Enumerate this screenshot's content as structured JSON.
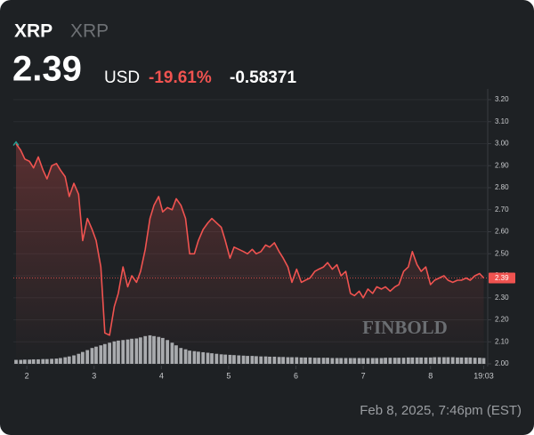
{
  "header": {
    "symbol": "XRP",
    "name": "XRP",
    "price": "2.39",
    "currency": "USD",
    "change_pct": "-19.61%",
    "change": "-0.58371"
  },
  "chart_data": {
    "type": "line",
    "x": [
      1.84,
      1.91,
      1.97,
      2.04,
      2.1,
      2.17,
      2.24,
      2.3,
      2.37,
      2.44,
      2.5,
      2.57,
      2.63,
      2.7,
      2.77,
      2.83,
      2.9,
      2.97,
      3.03,
      3.1,
      3.16,
      3.23,
      3.3,
      3.36,
      3.43,
      3.5,
      3.56,
      3.63,
      3.69,
      3.76,
      3.83,
      3.89,
      3.96,
      4.02,
      4.09,
      4.16,
      4.22,
      4.29,
      4.36,
      4.42,
      4.49,
      4.55,
      4.62,
      4.69,
      4.75,
      4.82,
      4.89,
      4.95,
      5.02,
      5.08,
      5.15,
      5.22,
      5.28,
      5.35,
      5.41,
      5.48,
      5.55,
      5.61,
      5.68,
      5.75,
      5.81,
      5.88,
      5.94,
      6.01,
      6.08,
      6.14,
      6.21,
      6.28,
      6.34,
      6.41,
      6.47,
      6.54,
      6.61,
      6.67,
      6.74,
      6.81,
      6.87,
      6.94,
      7.0,
      7.07,
      7.14,
      7.2,
      7.27,
      7.33,
      7.4,
      7.47,
      7.53,
      7.6,
      7.67,
      7.73,
      7.8,
      7.86,
      7.93,
      8.0,
      8.06,
      8.13,
      8.2,
      8.26,
      8.33,
      8.4,
      8.46,
      8.53,
      8.59,
      8.66,
      8.73,
      8.79
    ],
    "series": [
      {
        "color": "#f05350",
        "values": [
          3.0,
          2.97,
          2.93,
          2.92,
          2.89,
          2.94,
          2.88,
          2.84,
          2.9,
          2.91,
          2.88,
          2.85,
          2.76,
          2.82,
          2.77,
          2.56,
          2.66,
          2.61,
          2.56,
          2.44,
          2.14,
          2.13,
          2.26,
          2.32,
          2.44,
          2.35,
          2.4,
          2.37,
          2.42,
          2.52,
          2.66,
          2.72,
          2.76,
          2.69,
          2.71,
          2.7,
          2.75,
          2.72,
          2.66,
          2.5,
          2.5,
          2.56,
          2.61,
          2.64,
          2.66,
          2.64,
          2.62,
          2.56,
          2.48,
          2.53,
          2.52,
          2.51,
          2.5,
          2.52,
          2.5,
          2.51,
          2.54,
          2.53,
          2.55,
          2.51,
          2.48,
          2.44,
          2.37,
          2.43,
          2.37,
          2.38,
          2.39,
          2.42,
          2.43,
          2.44,
          2.46,
          2.43,
          2.45,
          2.4,
          2.42,
          2.32,
          2.31,
          2.33,
          2.3,
          2.34,
          2.32,
          2.35,
          2.34,
          2.35,
          2.33,
          2.35,
          2.36,
          2.42,
          2.44,
          2.51,
          2.45,
          2.42,
          2.44,
          2.36,
          2.38,
          2.39,
          2.4,
          2.38,
          2.37,
          2.38,
          2.38,
          2.39,
          2.38,
          2.4,
          2.41,
          2.39
        ]
      },
      {
        "type": "bar",
        "axis": "y2",
        "color": "#a9abae",
        "values": [
          1.5,
          1.5,
          1.6,
          1.6,
          1.7,
          1.7,
          1.8,
          1.8,
          1.9,
          2.0,
          2.2,
          2.5,
          2.8,
          3.2,
          3.8,
          4.5,
          5.2,
          6.0,
          6.5,
          7.0,
          7.5,
          8.0,
          8.5,
          8.8,
          9.0,
          9.2,
          9.5,
          9.6,
          10.0,
          10.5,
          10.8,
          10.5,
          10.2,
          9.8,
          9.0,
          8.0,
          7.0,
          6.0,
          5.5,
          5.0,
          4.8,
          4.6,
          4.4,
          4.2,
          4.0,
          3.8,
          3.6,
          3.5,
          3.4,
          3.3,
          3.2,
          3.1,
          3.0,
          3.0,
          2.9,
          2.8,
          2.8,
          2.7,
          2.7,
          2.6,
          2.6,
          2.5,
          2.5,
          2.5,
          2.4,
          2.4,
          2.4,
          2.3,
          2.3,
          2.3,
          2.3,
          2.2,
          2.2,
          2.2,
          2.2,
          2.2,
          2.2,
          2.2,
          2.2,
          2.2,
          2.2,
          2.2,
          2.2,
          2.3,
          2.3,
          2.3,
          2.3,
          2.3,
          2.4,
          2.4,
          2.4,
          2.4,
          2.4,
          2.4,
          2.5,
          2.5,
          2.5,
          2.5,
          2.5,
          2.4,
          2.4,
          2.4,
          2.4,
          2.3,
          2.3,
          2.2
        ]
      }
    ],
    "xlim": [
      1.8,
      8.85
    ],
    "xticks": [
      2,
      3,
      4,
      5,
      6,
      7,
      8,
      {
        "value": 8.79,
        "label": "19:03"
      }
    ],
    "ylim": [
      2.0,
      3.2
    ],
    "yticks": [
      {
        "value": 2.0,
        "label": "2.00"
      },
      {
        "value": 2.1,
        "label": "2.10"
      },
      {
        "value": 2.2,
        "label": "2.20"
      },
      {
        "value": 2.3,
        "label": "2.30"
      },
      {
        "value": 2.4,
        "label": "2.40"
      },
      {
        "value": 2.5,
        "label": "2.50"
      },
      {
        "value": 2.6,
        "label": "2.60"
      },
      {
        "value": 2.7,
        "label": "2.70"
      },
      {
        "value": 2.8,
        "label": "2.80"
      },
      {
        "value": 2.9,
        "label": "2.90"
      },
      {
        "value": 3.0,
        "label": "3.00"
      },
      {
        "value": 3.1,
        "label": "3.10"
      },
      {
        "value": 3.2,
        "label": "3.20"
      }
    ],
    "y2lim": [
      0,
      100
    ],
    "grid": true,
    "watermark": "FINBOLD"
  },
  "footer": {
    "timestamp": "Feb 8, 2025, 7:46pm (EST)"
  }
}
